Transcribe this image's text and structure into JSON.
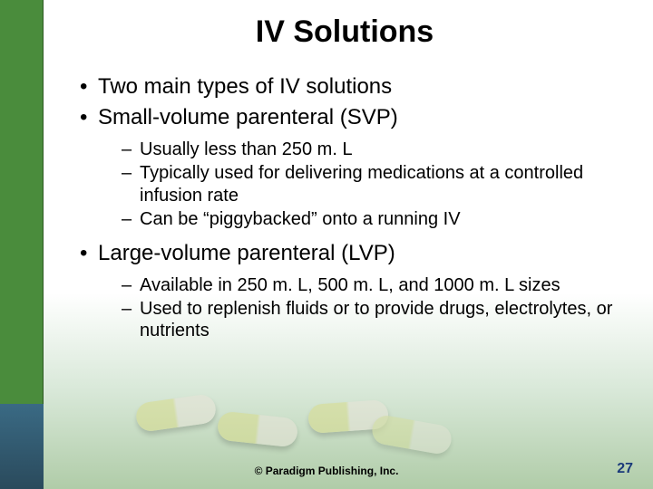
{
  "title": "IV Solutions",
  "title_fontsize": 34,
  "body_color": "#000000",
  "level1_fontsize": 24,
  "level2_fontsize": 20,
  "bullets": [
    {
      "text": "Two main types of IV solutions",
      "sub": []
    },
    {
      "text": "Small-volume parenteral (SVP)",
      "sub": [
        "Usually less than 250 m. L",
        "Typically used for delivering medications at a controlled infusion rate",
        "Can be “piggybacked” onto a running IV"
      ]
    },
    {
      "text": "Large-volume parenteral (LVP)",
      "sub": [
        "Available in 250 m. L, 500 m. L, and 1000 m. L sizes",
        "Used to replenish fluids or to provide drugs, electrolytes, or nutrients"
      ]
    }
  ],
  "copyright": "© Paradigm Publishing, Inc.",
  "copyright_fontsize": 12,
  "page_number": "27",
  "page_number_fontsize": 16,
  "page_number_color": "#1a3a7a",
  "stripe_color_top": "#4a8c3c",
  "stripe_color_bottom": "#2a4a5c",
  "background_gradient": [
    "#ffffff",
    "#d8e8d8",
    "#b0cca8"
  ]
}
